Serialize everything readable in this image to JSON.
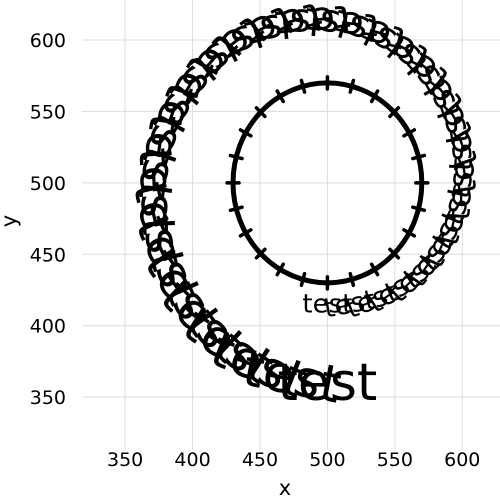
{
  "chart_data": {
    "type": "scatter",
    "title": "",
    "xlabel": "x",
    "ylabel": "y",
    "xlim": [
      318,
      628
    ],
    "ylim": [
      313,
      628
    ],
    "xticks": [
      "350",
      "400",
      "450",
      "500",
      "550",
      "600"
    ],
    "yticks": [
      "350",
      "400",
      "450",
      "500",
      "550",
      "600"
    ],
    "grid": true,
    "center": [
      500,
      500
    ],
    "circle_radius": 70,
    "circle_tick_count": 24,
    "label_text": "test",
    "text_spirals": [
      {
        "name": "",
        "radius_start": 85,
        "radius_end": 140,
        "count": 34,
        "font_size_start": 26,
        "font_size_end": 52
      }
    ]
  }
}
